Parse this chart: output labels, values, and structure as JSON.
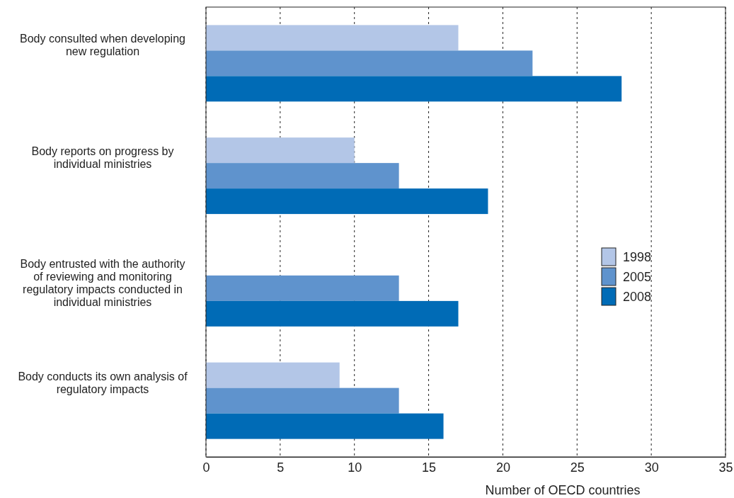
{
  "chart_data": {
    "type": "bar",
    "orientation": "horizontal",
    "xlabel": "Number of OECD countries",
    "categories": [
      "Body consulted when developing new regulation",
      "Body reports on progress by individual ministries",
      "Body entrusted with the authority of reviewing and monitoring regulatory impacts conducted in individual ministries",
      "Body conducts its own analysis of regulatory impacts"
    ],
    "series": [
      {
        "name": "1998",
        "color": "#b3c6e7",
        "values": [
          17,
          10,
          0,
          9
        ]
      },
      {
        "name": "2005",
        "color": "#5f93cd",
        "values": [
          22,
          13,
          13,
          13
        ]
      },
      {
        "name": "2008",
        "color": "#006bb6",
        "values": [
          28,
          19,
          17,
          16
        ]
      }
    ],
    "xlim": [
      0,
      35
    ],
    "xticks": [
      0,
      5,
      10,
      15,
      20,
      25,
      30,
      35
    ],
    "grid": "x",
    "legend": "right"
  }
}
